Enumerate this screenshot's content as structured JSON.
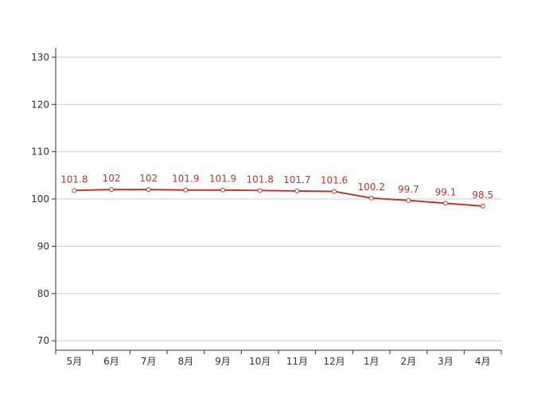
{
  "chart_data": {
    "type": "line",
    "categories": [
      "5月",
      "6月",
      "7月",
      "8月",
      "9月",
      "10月",
      "11月",
      "12月",
      "1月",
      "2月",
      "3月",
      "4月"
    ],
    "series": [
      {
        "color": "#c23531",
        "values": [
          101.8,
          102,
          102,
          101.9,
          101.9,
          101.8,
          101.7,
          101.6,
          100.2,
          99.7,
          99.1,
          98.5
        ]
      }
    ],
    "ylim": [
      68,
      132
    ],
    "yticks": [
      70,
      80,
      90,
      100,
      110,
      120,
      130
    ],
    "grid": true
  }
}
